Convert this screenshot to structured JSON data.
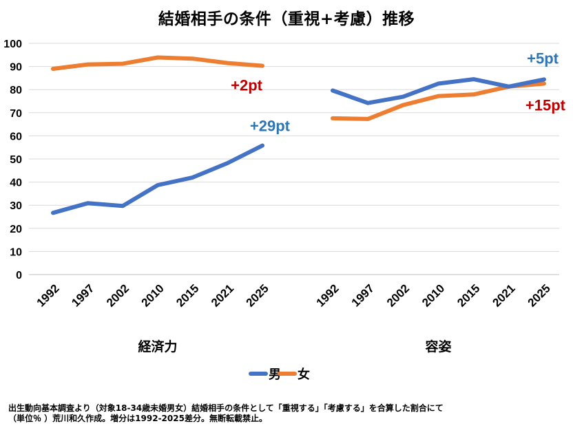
{
  "title": "結婚相手の条件（重視+考慮）推移",
  "footnote": {
    "line1": "出生動向基本調査より（対象18-34歳未婚男女）結婚相手の条件として「重視する」「考慮する」を合算した割合にて",
    "line2": "（単位％ ）荒川和久作成。増分は1992-2025差分。無断転載禁止。"
  },
  "colors": {
    "male": "#4472C4",
    "female": "#ED7D31",
    "annot_male": "#2E75B6",
    "annot_female": "#C00000"
  },
  "chart_data": {
    "type": "line",
    "ylim": [
      0,
      100
    ],
    "yticks": [
      0,
      10,
      20,
      30,
      40,
      50,
      60,
      70,
      80,
      90,
      100
    ],
    "grid": true,
    "legend": {
      "position": "bottom",
      "entries": [
        "男",
        "女"
      ]
    },
    "groups": [
      {
        "label": "経済力",
        "categories": [
          "1992",
          "1997",
          "2002",
          "2010",
          "2015",
          "2021",
          "2025"
        ],
        "series": [
          {
            "name": "男",
            "values": [
              26.7,
              30.9,
              29.7,
              38.7,
              42.0,
              48.2,
              55.8
            ]
          },
          {
            "name": "女",
            "values": [
              89.0,
              90.9,
              91.2,
              93.9,
              93.4,
              91.5,
              90.3
            ]
          }
        ],
        "annotations": [
          {
            "series": "女",
            "text": "+2pt"
          },
          {
            "series": "男",
            "text": "+29pt"
          }
        ]
      },
      {
        "label": "容姿",
        "categories": [
          "1992",
          "1997",
          "2002",
          "2010",
          "2015",
          "2021",
          "2025"
        ],
        "series": [
          {
            "name": "男",
            "values": [
              79.6,
              74.2,
              76.9,
              82.6,
              84.5,
              81.3,
              84.4
            ]
          },
          {
            "name": "女",
            "values": [
              67.6,
              67.3,
              73.3,
              77.2,
              77.9,
              81.3,
              82.6
            ]
          }
        ],
        "annotations": [
          {
            "series": "男",
            "text": "+5pt"
          },
          {
            "series": "女",
            "text": "+15pt"
          }
        ]
      }
    ]
  }
}
